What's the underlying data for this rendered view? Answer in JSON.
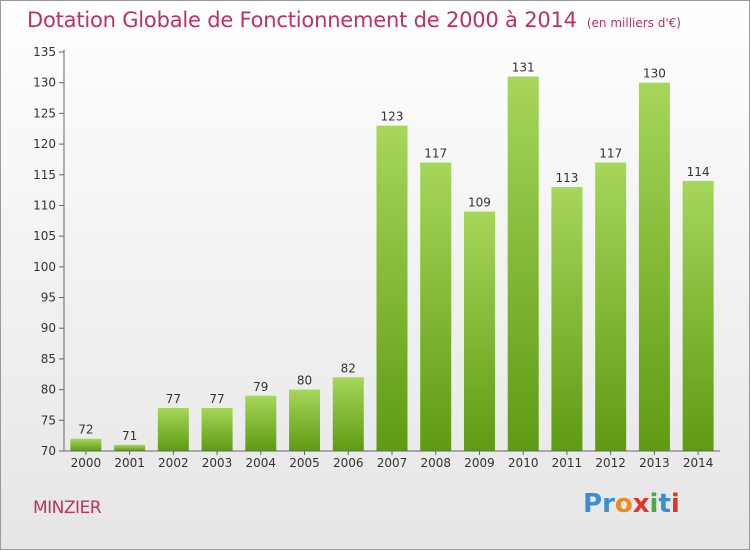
{
  "header": {
    "title": "Dotation Globale de Fonctionnement de 2000 à 2014",
    "unit": "(en milliers d'€)"
  },
  "footer": {
    "commune": "MINZIER",
    "logo_letters": [
      "P",
      "r",
      "o",
      "x",
      "i",
      "t",
      "i"
    ],
    "logo_colors": [
      "#3a8fd0",
      "#3a8fd0",
      "#f08a1c",
      "#e0342c",
      "#4aa84a",
      "#3a8fd0",
      "#e0342c"
    ]
  },
  "colors": {
    "bar_light": "#a6d65a",
    "bar_dark": "#5e9b12",
    "axis": "#666666",
    "grid": "#cfcfcf",
    "title": "#c03060",
    "text": "#333333"
  },
  "chart_data": {
    "type": "bar",
    "title": "Dotation Globale de Fonctionnement de 2000 à 2014",
    "subtitle": "(en milliers d'€)",
    "xlabel": "",
    "ylabel": "",
    "categories": [
      "2000",
      "2001",
      "2002",
      "2003",
      "2004",
      "2005",
      "2006",
      "2007",
      "2008",
      "2009",
      "2010",
      "2011",
      "2012",
      "2013",
      "2014"
    ],
    "values": [
      72,
      71,
      77,
      77,
      79,
      80,
      82,
      123,
      117,
      109,
      131,
      113,
      117,
      130,
      114
    ],
    "ylim": [
      70,
      135
    ],
    "yticks": [
      70,
      75,
      80,
      85,
      90,
      95,
      100,
      105,
      110,
      115,
      120,
      125,
      130,
      135
    ],
    "grid": false,
    "data_labels": true
  }
}
